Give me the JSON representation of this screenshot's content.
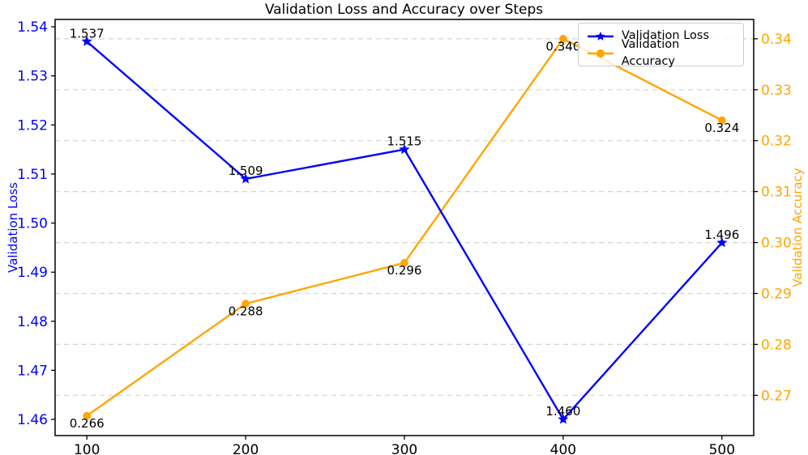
{
  "chart_data": {
    "type": "line",
    "title": "Validation Loss and Accuracy over Steps",
    "x": [
      100,
      200,
      300,
      400,
      500
    ],
    "xticks": [
      "100",
      "200",
      "300",
      "400",
      "500"
    ],
    "xlim": [
      80,
      520
    ],
    "xlabel": "",
    "grid": {
      "on": true,
      "orientation": "horizontal",
      "style": "dashed",
      "color": "#d3d3d3",
      "aligned_to": "right-axis-ticks"
    },
    "left_axis": {
      "label": "Validation Loss",
      "color": "#0000ff",
      "ticks": [
        "1.46",
        "1.47",
        "1.48",
        "1.49",
        "1.50",
        "1.51",
        "1.52",
        "1.53",
        "1.54"
      ],
      "tick_values": [
        1.46,
        1.47,
        1.48,
        1.49,
        1.5,
        1.51,
        1.52,
        1.53,
        1.54
      ],
      "ylim": [
        1.4567,
        1.5415
      ]
    },
    "right_axis": {
      "label": "Validation Accuracy",
      "color": "#ffa500",
      "ticks": [
        "0.27",
        "0.28",
        "0.29",
        "0.30",
        "0.31",
        "0.32",
        "0.33",
        "0.34"
      ],
      "tick_values": [
        0.27,
        0.28,
        0.29,
        0.3,
        0.31,
        0.32,
        0.33,
        0.34
      ],
      "ylim": [
        0.2621,
        0.3438
      ]
    },
    "series": [
      {
        "name": "Validation Accuracy",
        "axis": "right",
        "color": "#ffa500",
        "marker": "circle",
        "values": [
          0.266,
          0.288,
          0.296,
          0.34,
          0.324
        ],
        "point_labels": [
          "0.266",
          "0.288",
          "0.296",
          "0.340",
          "0.324"
        ],
        "label_position": "below"
      },
      {
        "name": "Validation Loss",
        "axis": "left",
        "color": "#0000ff",
        "marker": "star",
        "values": [
          1.537,
          1.509,
          1.515,
          1.46,
          1.496
        ],
        "point_labels": [
          "1.537",
          "1.509",
          "1.515",
          "1.460",
          "1.496"
        ],
        "label_position": "above"
      }
    ],
    "legend": {
      "position": "upper-right",
      "entries": [
        "Validation Loss",
        "Validation Accuracy"
      ]
    }
  }
}
